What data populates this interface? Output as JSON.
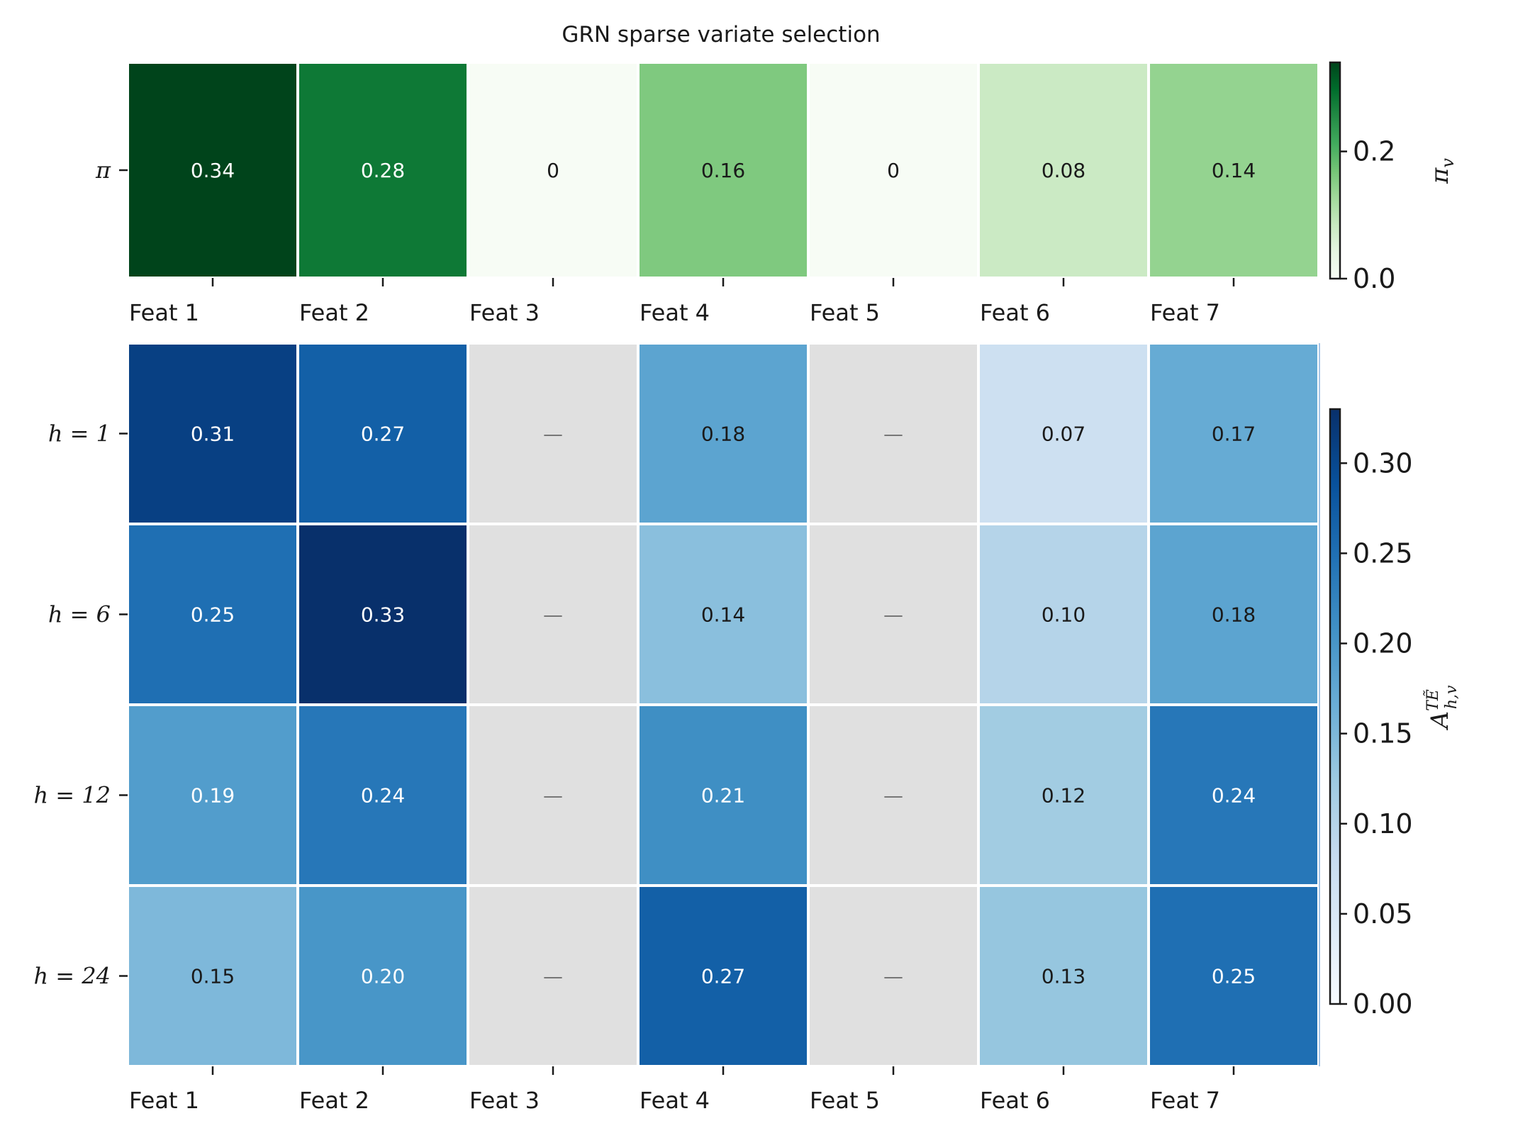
{
  "chart_data": [
    {
      "type": "heatmap",
      "title": "GRN sparse variate selection",
      "columns": [
        "Feat 1",
        "Feat 2",
        "Feat 3",
        "Feat 4",
        "Feat 5",
        "Feat 6",
        "Feat 7"
      ],
      "rows": [
        {
          "label": "π",
          "values": [
            0.34,
            0.28,
            0.0,
            0.16,
            0.0,
            0.08,
            0.14
          ],
          "labels": [
            "0.34",
            "0.28",
            "0",
            "0.16",
            "0",
            "0.08",
            "0.14"
          ]
        }
      ],
      "colormap": "Greens",
      "colorbar": {
        "label": "π_v",
        "range": [
          0.0,
          0.34
        ],
        "ticks": [
          0.0,
          0.2
        ],
        "tick_labels": [
          "0.0",
          "0.2"
        ]
      }
    },
    {
      "type": "heatmap",
      "columns": [
        "Feat 1",
        "Feat 2",
        "Feat 3",
        "Feat 4",
        "Feat 5",
        "Feat 6",
        "Feat 7"
      ],
      "rows": [
        {
          "label": "h = 1",
          "values": [
            0.31,
            0.27,
            null,
            0.18,
            null,
            0.07,
            0.17
          ],
          "labels": [
            "0.31",
            "0.27",
            "—",
            "0.18",
            "—",
            "0.07",
            "0.17"
          ]
        },
        {
          "label": "h = 6",
          "values": [
            0.25,
            0.33,
            null,
            0.14,
            null,
            0.1,
            0.18
          ],
          "labels": [
            "0.25",
            "0.33",
            "—",
            "0.14",
            "—",
            "0.10",
            "0.18"
          ]
        },
        {
          "label": "h = 12",
          "values": [
            0.19,
            0.24,
            null,
            0.21,
            null,
            0.12,
            0.24
          ],
          "labels": [
            "0.19",
            "0.24",
            "—",
            "0.21",
            "—",
            "0.12",
            "0.24"
          ]
        },
        {
          "label": "h = 24",
          "values": [
            0.15,
            0.2,
            null,
            0.27,
            null,
            0.13,
            0.25
          ],
          "labels": [
            "0.15",
            "0.20",
            "—",
            "0.27",
            "—",
            "0.13",
            "0.25"
          ]
        }
      ],
      "colormap": "Blues",
      "missing_color": "#e0e0e0",
      "colorbar": {
        "label": "A^{TẼ}_{h,v}",
        "range": [
          0.0,
          0.33
        ],
        "ticks": [
          0.0,
          0.05,
          0.1,
          0.15,
          0.2,
          0.25,
          0.3
        ],
        "tick_labels": [
          "0.00",
          "0.05",
          "0.10",
          "0.15",
          "0.20",
          "0.25",
          "0.30"
        ]
      }
    }
  ]
}
